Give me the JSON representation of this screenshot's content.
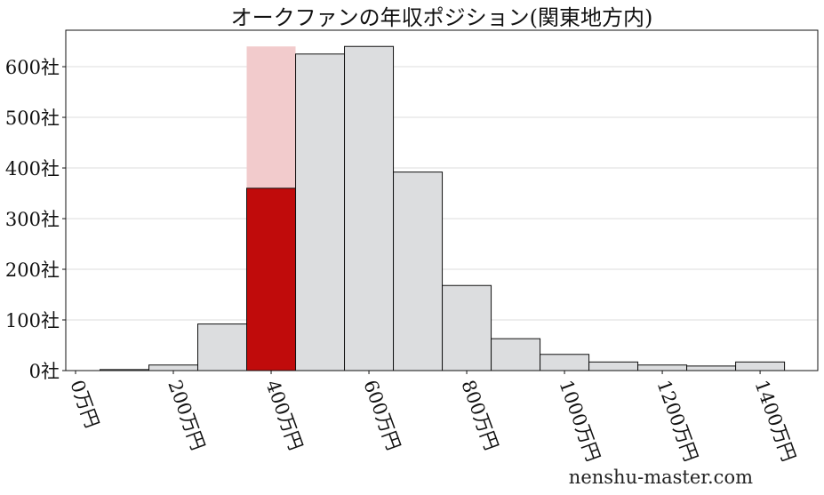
{
  "chart_data": {
    "type": "bar",
    "title": "オークファンの年収ポジション(関東地方内)",
    "xlabel": "",
    "ylabel": "",
    "x_bin_centers": [
      100,
      200,
      300,
      400,
      500,
      600,
      700,
      800,
      900,
      1000,
      1100,
      1200,
      1300,
      1400
    ],
    "bin_width": 100,
    "series": [
      {
        "values": [
          2,
          11,
          92,
          360,
          625,
          640,
          392,
          168,
          63,
          32,
          17,
          11,
          9,
          17
        ]
      }
    ],
    "highlight": {
      "bin_center": 400,
      "value": 360,
      "background_value": 640
    },
    "xlim": [
      -20,
      1518
    ],
    "ylim": [
      0,
      672
    ],
    "x_ticks": [
      0,
      200,
      400,
      600,
      800,
      1000,
      1200,
      1400
    ],
    "x_tick_labels": [
      "0万円",
      "200万円",
      "400万円",
      "600万円",
      "800万円",
      "1000万円",
      "1200万円",
      "1400万円"
    ],
    "y_ticks": [
      0,
      100,
      200,
      300,
      400,
      500,
      600
    ],
    "y_tick_labels": [
      "0社",
      "100社",
      "200社",
      "300社",
      "400社",
      "500社",
      "600社"
    ],
    "grid": "horizontal",
    "colors": {
      "bar": "#dcdddf",
      "highlight": "#c00b0b",
      "highlight_bg": "#f2cbcc",
      "edge": "#111111",
      "grid": "#dddddd"
    }
  },
  "watermark": "nenshu-master.com"
}
